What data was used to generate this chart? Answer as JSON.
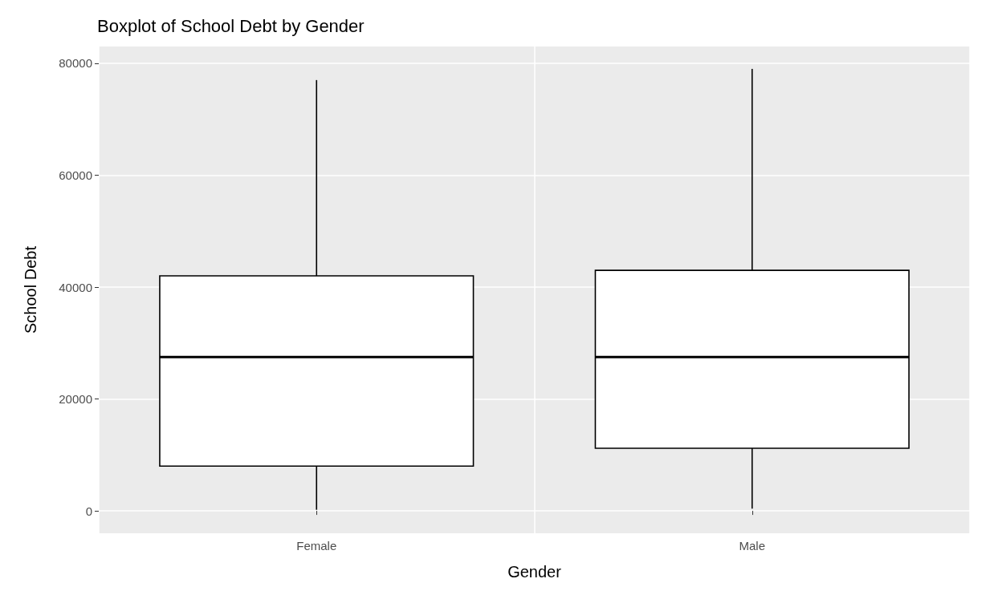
{
  "chart_data": {
    "type": "box",
    "title": "Boxplot of School Debt by Gender",
    "xlabel": "Gender",
    "ylabel": "School Debt",
    "categories": [
      "Female",
      "Male"
    ],
    "boxes": [
      {
        "low": 200,
        "q1": 8000,
        "median": 27500,
        "q3": 42000,
        "high": 77000
      },
      {
        "low": 400,
        "q1": 11200,
        "median": 27500,
        "q3": 43000,
        "high": 79000
      }
    ],
    "ylim": [
      -4000,
      83000
    ],
    "yticks": [
      0,
      20000,
      40000,
      60000,
      80000
    ],
    "grid": true
  }
}
